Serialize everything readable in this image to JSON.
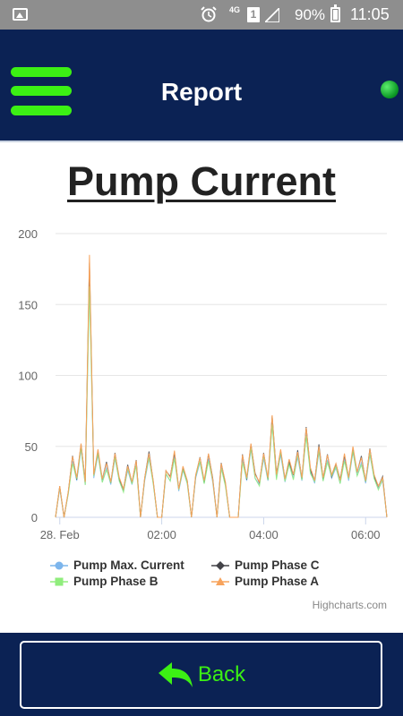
{
  "status_bar": {
    "network": "4G",
    "sim": "1",
    "battery_pct": "90%",
    "time": "11:05",
    "icons": [
      "gallery-icon",
      "alarm-icon",
      "signal-icon",
      "battery-icon"
    ]
  },
  "app_bar": {
    "title": "Report",
    "status_color": "#1fb83a"
  },
  "report": {
    "heading": "Pump Current",
    "credit": "Highcharts.com"
  },
  "chart_data": {
    "type": "line",
    "title": "Pump Current",
    "xlabel": "",
    "ylabel": "",
    "x_range": [
      "23:55",
      "06:25"
    ],
    "ylim": [
      0,
      200
    ],
    "yticks": [
      0,
      50,
      100,
      150,
      200
    ],
    "xticks": [
      "28. Feb",
      "02:00",
      "04:00",
      "06:00"
    ],
    "grid": true,
    "legend_position": "bottom",
    "series": [
      {
        "name": "Pump Max. Current",
        "color": "#7cb5ec",
        "marker": "circle"
      },
      {
        "name": "Pump Phase C",
        "color": "#434348",
        "marker": "diamond"
      },
      {
        "name": "Pump Phase B",
        "color": "#90ed7d",
        "marker": "square"
      },
      {
        "name": "Pump Phase A",
        "color": "#f7a35c",
        "marker": "triangle"
      }
    ],
    "x": [
      "23:55",
      "00:00",
      "00:05",
      "00:10",
      "00:15",
      "00:20",
      "00:25",
      "00:30",
      "00:35",
      "00:40",
      "00:45",
      "00:50",
      "00:55",
      "01:00",
      "01:05",
      "01:10",
      "01:15",
      "01:20",
      "01:25",
      "01:30",
      "01:35",
      "01:40",
      "01:45",
      "01:50",
      "01:55",
      "02:00",
      "02:05",
      "02:10",
      "02:15",
      "02:20",
      "02:25",
      "02:30",
      "02:35",
      "02:40",
      "02:45",
      "02:50",
      "02:55",
      "03:00",
      "03:05",
      "03:10",
      "03:15",
      "03:20",
      "03:25",
      "03:30",
      "03:35",
      "03:40",
      "03:45",
      "03:50",
      "03:55",
      "04:00",
      "04:05",
      "04:10",
      "04:15",
      "04:20",
      "04:25",
      "04:30",
      "04:35",
      "04:40",
      "04:45",
      "04:50",
      "04:55",
      "05:00",
      "05:05",
      "05:10",
      "05:15",
      "05:20",
      "05:25",
      "05:30",
      "05:35",
      "05:40",
      "05:45",
      "05:50",
      "05:55",
      "06:00",
      "06:05",
      "06:10",
      "06:15",
      "06:20",
      "06:25"
    ],
    "values": [
      0,
      22,
      0,
      18,
      43,
      28,
      52,
      25,
      185,
      30,
      48,
      27,
      38,
      25,
      45,
      28,
      20,
      36,
      25,
      40,
      0,
      28,
      45,
      26,
      0,
      0,
      33,
      28,
      47,
      20,
      36,
      26,
      0,
      30,
      42,
      26,
      45,
      27,
      0,
      38,
      25,
      0,
      0,
      0,
      44,
      28,
      52,
      30,
      25,
      45,
      28,
      72,
      30,
      48,
      27,
      41,
      30,
      46,
      28,
      63,
      35,
      26,
      50,
      28,
      44,
      30,
      38,
      26,
      45,
      28,
      50,
      32,
      42,
      26,
      48,
      30,
      22,
      28,
      0
    ]
  },
  "back_button": {
    "label": "Back"
  }
}
